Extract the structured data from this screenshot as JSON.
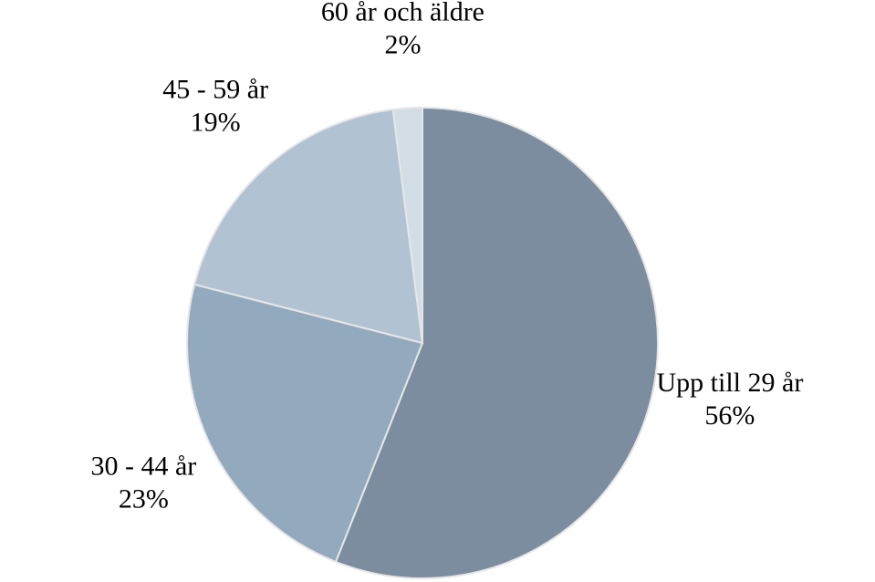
{
  "chart_data": {
    "type": "pie",
    "categories": [
      "Upp till 29 år",
      "30 - 44 år",
      "45 - 59 år",
      "60 år och äldre"
    ],
    "values": [
      56,
      23,
      19,
      2
    ],
    "value_labels": [
      "56%",
      "23%",
      "19%",
      "2%"
    ],
    "colors": [
      "#7b8d9e",
      "#93a9bd",
      "#b1c2d3",
      "#d3dde6"
    ]
  }
}
